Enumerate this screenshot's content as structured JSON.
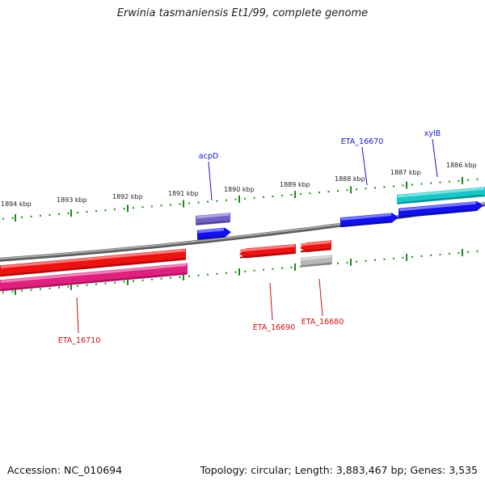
{
  "title": "Erwinia tasmaniensis Et1/99, complete genome",
  "footer": {
    "accession": "Accession: NC_010694",
    "summary": "Topology: circular; Length: 3,883,467 bp; Genes: 3,535"
  },
  "colors": {
    "backbone": "#7a7a7a",
    "tick": "#1a8a1a",
    "label_forward": "#1a1acc",
    "label_reverse": "#cc1111",
    "gene_blue": "#1111ee",
    "gene_red": "#ee1111",
    "gene_cyan": "#18c8c8",
    "gene_magenta": "#e0207f",
    "gene_purple": "#7060c8",
    "gene_gray": "#b8b8b8"
  },
  "ruler": {
    "labels": [
      "1894 kbp",
      "1893 kbp",
      "1892 kbp",
      "1891 kbp",
      "1890 kbp",
      "1889 kbp",
      "1888 kbp",
      "1887 kbp",
      "1886 kbp"
    ]
  },
  "features": [
    {
      "name": "acpD",
      "strand": "forward",
      "color_key": "gene_purple"
    },
    {
      "name": "acpD",
      "strand": "forward",
      "color_key": "gene_blue"
    },
    {
      "name": "ETA_16670",
      "strand": "forward",
      "color_key": "gene_blue"
    },
    {
      "name": "xylB",
      "strand": "forward",
      "color_key": "gene_cyan"
    },
    {
      "name": "xylB",
      "strand": "forward",
      "color_key": "gene_blue"
    },
    {
      "name": "ETA_16710",
      "strand": "reverse",
      "color_key": "gene_red"
    },
    {
      "name": "ETA_16710",
      "strand": "reverse",
      "color_key": "gene_magenta"
    },
    {
      "name": "ETA_16690",
      "strand": "reverse",
      "color_key": "gene_red"
    },
    {
      "name": "ETA_16680",
      "strand": "reverse",
      "color_key": "gene_red"
    },
    {
      "name": "ETA_16680",
      "strand": "reverse",
      "color_key": "gene_gray"
    }
  ],
  "labels": [
    {
      "text": "acpD",
      "strand": "forward"
    },
    {
      "text": "ETA_16670",
      "strand": "forward"
    },
    {
      "text": "xylB",
      "strand": "forward"
    },
    {
      "text": "ETA_16710",
      "strand": "reverse"
    },
    {
      "text": "ETA_16690",
      "strand": "reverse"
    },
    {
      "text": "ETA_16680",
      "strand": "reverse"
    }
  ]
}
